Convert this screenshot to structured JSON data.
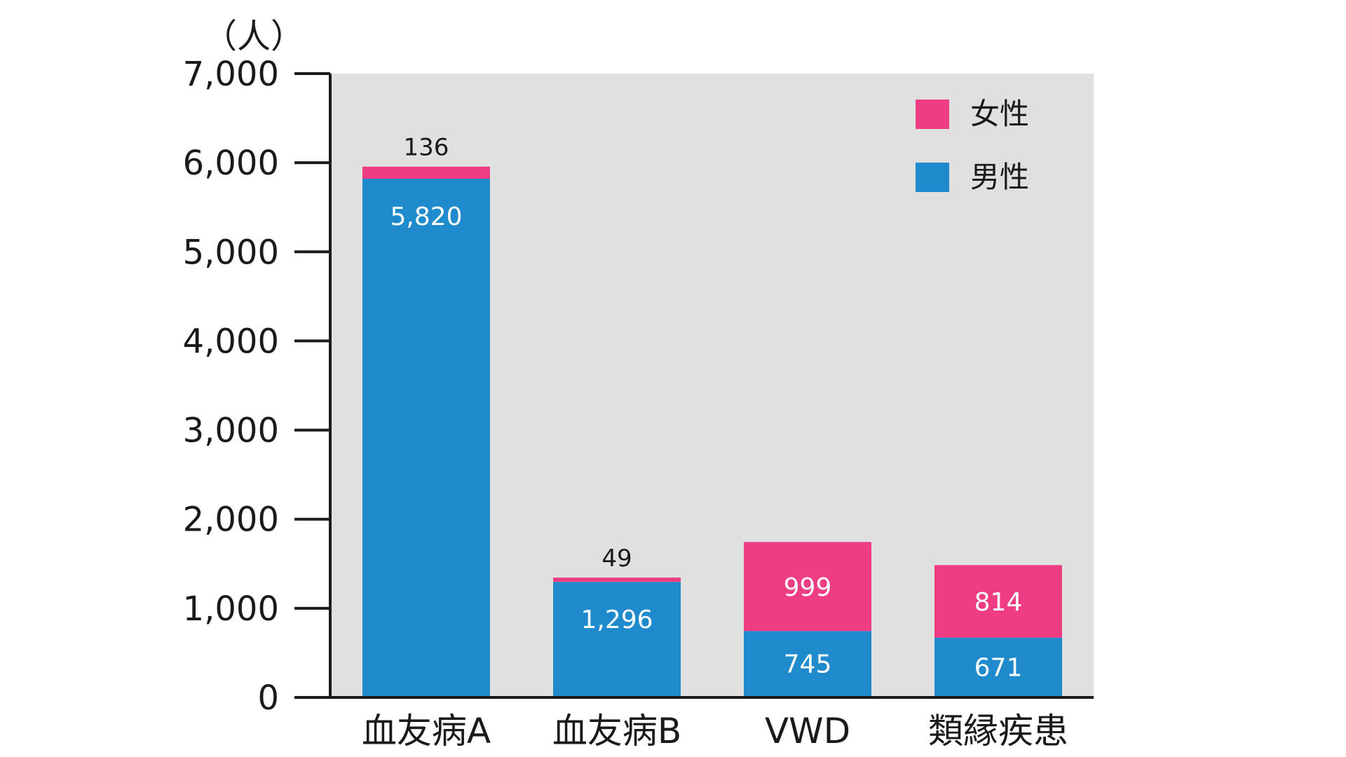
{
  "chart_data": {
    "type": "bar",
    "stacked": true,
    "categories": [
      "血友病A",
      "血友病B",
      "VWD",
      "類縁疾患"
    ],
    "series": [
      {
        "name": "男性",
        "values": [
          5820,
          1296,
          745,
          671
        ],
        "color": "#1f8bcc"
      },
      {
        "name": "女性",
        "values": [
          136,
          49,
          999,
          814
        ],
        "color": "#ef3d84"
      }
    ],
    "ylabel": "（人）",
    "ylim": [
      0,
      7000
    ],
    "yticks": [
      0,
      1000,
      2000,
      3000,
      4000,
      5000,
      6000,
      7000
    ],
    "ytick_labels": [
      "0",
      "1,000",
      "2,000",
      "3,000",
      "4,000",
      "5,000",
      "6,000",
      "7,000"
    ],
    "value_labels": {
      "male": [
        "5,820",
        "1,296",
        "745",
        "671"
      ],
      "female": [
        "136",
        "49",
        "999",
        "814"
      ]
    },
    "legend": {
      "position": "top-right",
      "items": [
        {
          "label": "女性",
          "color": "#ef3d84"
        },
        {
          "label": "男性",
          "color": "#1f8bcc"
        }
      ]
    },
    "plot_background": "#e0e0e0",
    "grid": false
  }
}
